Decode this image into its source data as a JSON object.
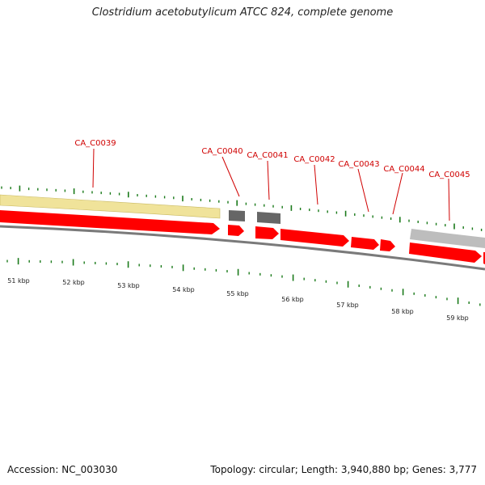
{
  "title": "Clostridium acetobutylicum ATCC 824, complete genome",
  "footer": {
    "accession": "Accession: NC_003030",
    "summary": "Topology: circular; Length: 3,940,880 bp; Genes: 3,777"
  },
  "colors": {
    "gene": "#ff0000",
    "label": "#d00000",
    "tick": "#1a7a1a",
    "backbone": "#777777",
    "highlight_yellow": "#f0e39a",
    "feature_dark": "#666666",
    "feature_light": "#bdbdbd"
  },
  "gene_labels": [
    "CA_C0039",
    "CA_C0040",
    "CA_C0041",
    "CA_C0042",
    "CA_C0043",
    "CA_C0044",
    "CA_C0045"
  ],
  "kbp_labels": [
    "51 kbp",
    "52 kbp",
    "53 kbp",
    "54 kbp",
    "55 kbp",
    "56 kbp",
    "57 kbp",
    "58 kbp",
    "59 kbp"
  ]
}
